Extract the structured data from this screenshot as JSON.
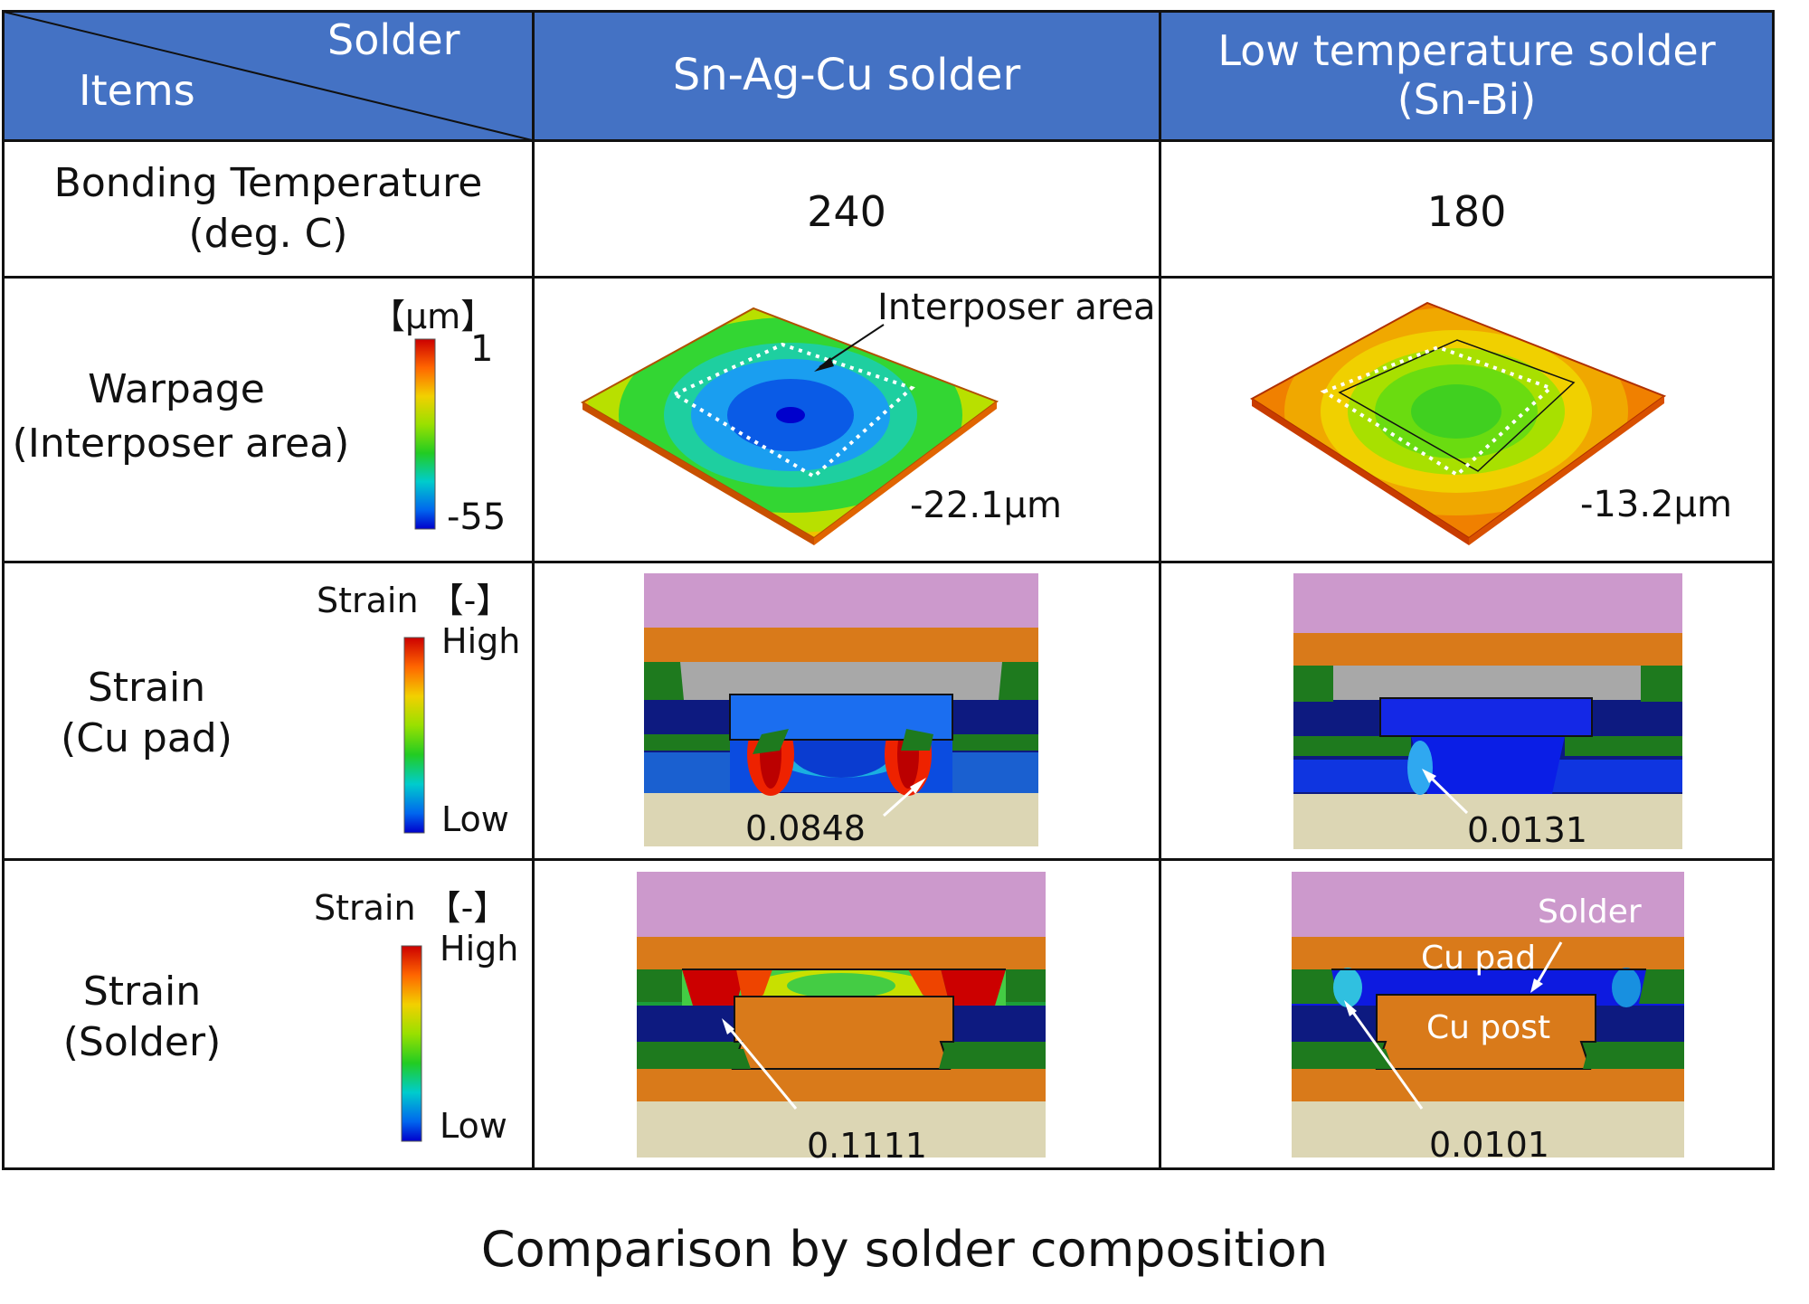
{
  "header": {
    "corner_top": "Solder",
    "corner_bottom": "Items",
    "col1": "Sn-Ag-Cu solder",
    "col2_line1": "Low temperature solder",
    "col2_line2": "(Sn-Bi)"
  },
  "rows": {
    "bonding": {
      "label_line1": "Bonding Temperature",
      "label_line2": "(deg. C)",
      "sac": "240",
      "snbi": "180"
    },
    "warpage": {
      "label_line1": "Warpage",
      "label_line2": "(Interposer area)",
      "unit": "【μm】",
      "scale_max": "1",
      "scale_min": "-55",
      "callout": "Interposer area",
      "sac": "-22.1μm",
      "snbi": "-13.2μm"
    },
    "strain_pad": {
      "label_line1": "Strain",
      "label_line2": "(Cu pad)",
      "unit": "Strain 【-】",
      "high": "High",
      "low": "Low",
      "sac": "0.0848",
      "snbi": "0.0131"
    },
    "strain_solder": {
      "label_line1": "Strain",
      "label_line2": "(Solder)",
      "unit": "Strain 【-】",
      "high": "High",
      "low": "Low",
      "sac": "0.1111",
      "snbi": "0.0101",
      "lbl_solder": "Solder",
      "lbl_cu_pad": "Cu pad",
      "lbl_cu_post": "Cu post"
    }
  },
  "caption": "Comparison by solder composition",
  "colors": {
    "header": "#4472c4",
    "pink": "#cc99cc",
    "orange": "#d97a1a",
    "navy": "#0d1a80",
    "green": "#1e7a1e",
    "beige": "#dcd6b4",
    "gray": "#a8a8a8"
  }
}
